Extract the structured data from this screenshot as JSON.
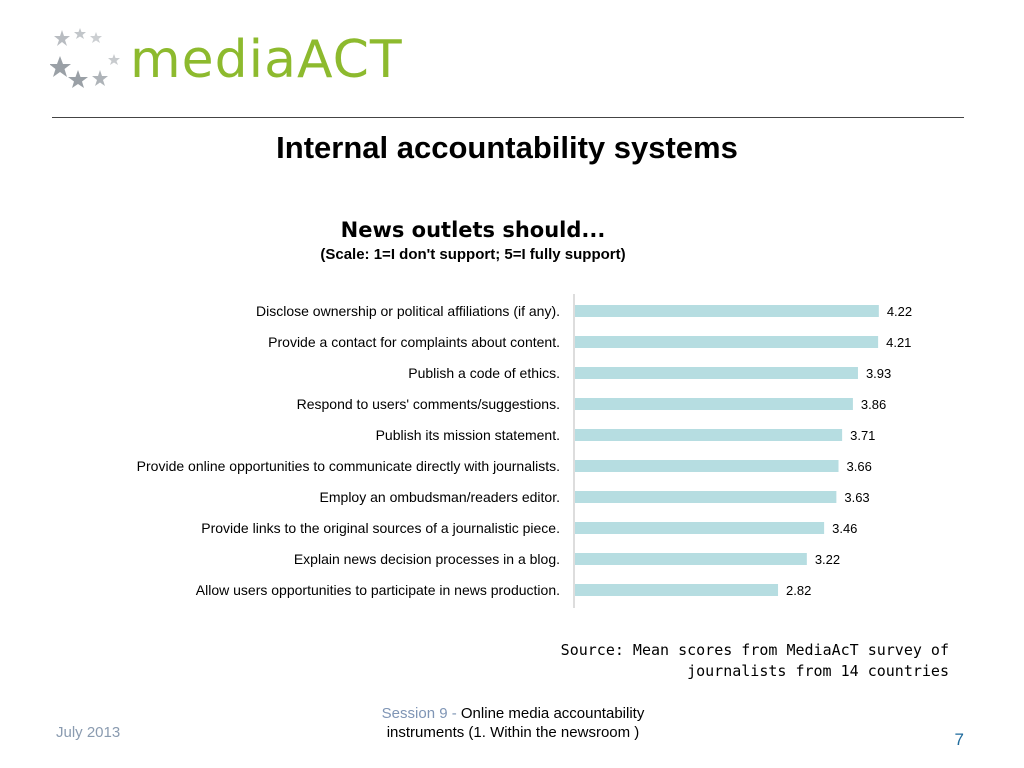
{
  "logo": {
    "text": "mediaACT"
  },
  "slide": {
    "title": "Internal accountability systems"
  },
  "colors": {
    "bar": "#b6dde1",
    "logo": "#8dba2e",
    "axis": "#bbbbbb"
  },
  "chart_data": {
    "type": "bar",
    "orientation": "horizontal",
    "title": "News outlets should...",
    "subtitle": "(Scale: 1=I don't support; 5=I fully support)",
    "categories": [
      "Disclose ownership or political affiliations (if any).",
      "Provide a contact for complaints about content.",
      "Publish a code of ethics.",
      "Respond to users' comments/suggestions.",
      "Publish its mission statement.",
      "Provide online opportunities to communicate directly with journalists.",
      "Employ an ombudsman/readers editor.",
      "Provide links to the original sources of a journalistic piece.",
      "Explain news decision processes in a blog.",
      "Allow users opportunities to participate in news production."
    ],
    "values": [
      4.22,
      4.21,
      3.93,
      3.86,
      3.71,
      3.66,
      3.63,
      3.46,
      3.22,
      2.82
    ],
    "value_labels": [
      "4.22",
      "4.21",
      "3.93",
      "3.86",
      "3.71",
      "3.66",
      "3.63",
      "3.46",
      "3.22",
      "2.82"
    ],
    "xlim": [
      0,
      5
    ],
    "grid": false,
    "legend": "none"
  },
  "source": {
    "line1": "Source: Mean scores from MediaAcT survey of",
    "line2": "journalists from 14 countries"
  },
  "footer": {
    "date": "July 2013",
    "session_prefix": "Session 9 - ",
    "session_title_1": "Online media accountability",
    "session_title_2": "instruments (1. Within the newsroom )",
    "page": "7"
  }
}
